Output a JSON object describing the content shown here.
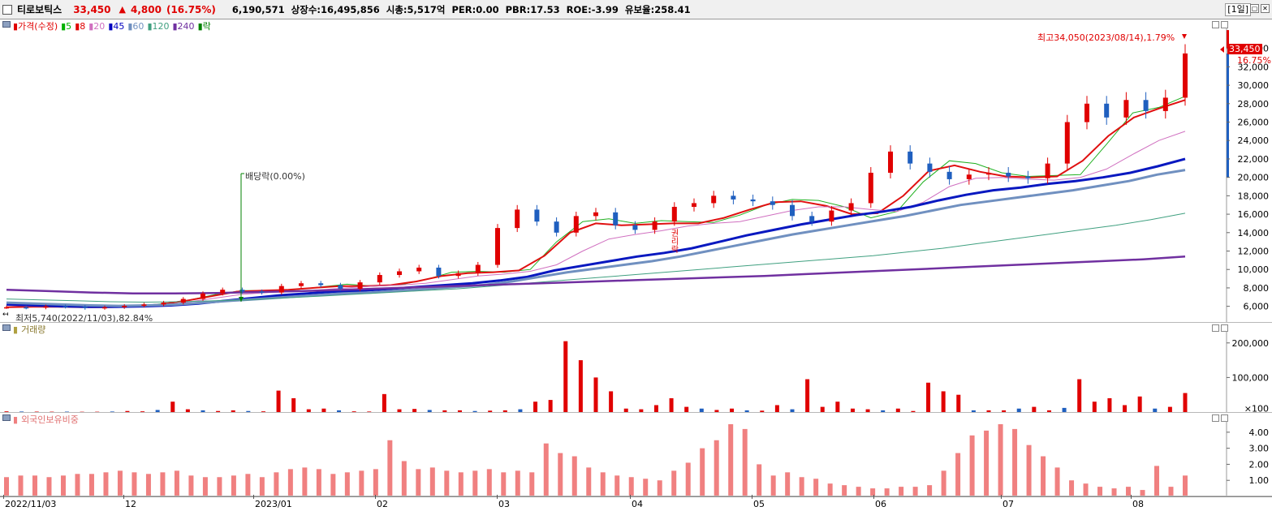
{
  "header": {
    "stock_name": "티로보틱스",
    "price": "33,450",
    "arrow": "▲",
    "change": "4,800",
    "change_rate": "(16.75%)",
    "volume": "6,190,571",
    "listed_shares": "상장수:16,495,856",
    "market_cap": "시총:5,517억",
    "per": "PER:0.00",
    "pbr": "PBR:17.53",
    "roe": "ROE:-3.99",
    "float_rate": "유보율:258.41",
    "period": "[1일]",
    "win_restore": "▢",
    "win_close": "✕"
  },
  "price_panel": {
    "legend": [
      {
        "text": "가격(수정)",
        "color": "#e00000"
      },
      {
        "text": "5",
        "color": "#00b000"
      },
      {
        "text": "8",
        "color": "#e00000"
      },
      {
        "text": "20",
        "color": "#d070c0"
      },
      {
        "text": "45",
        "color": "#0000c0"
      },
      {
        "text": "60",
        "color": "#7090c0"
      },
      {
        "text": "120",
        "color": "#40a080"
      },
      {
        "text": "240",
        "color": "#7030a0"
      },
      {
        "text": "락",
        "color": "#008000"
      }
    ],
    "high_label": "최고34,050(2023/08/14),1.79%",
    "low_label": "최저5,740(2022/11/03),82.84%",
    "dividend_label": "배당락(0.00%)",
    "rights_label": "권리락",
    "current_price_tag": "33,450",
    "current_rate_tag": "16.75%",
    "y_ticks": [
      "34,000",
      "32,000",
      "30,000",
      "28,000",
      "26,000",
      "24,000",
      "22,000",
      "20,000",
      "18,000",
      "16,000",
      "14,000",
      "12,000",
      "10,000",
      "8,000",
      "6,000"
    ]
  },
  "volume_panel": {
    "legend": "거래량",
    "y_ticks": [
      "200,000",
      "100,000",
      "×100"
    ]
  },
  "foreign_panel": {
    "legend": "외국인보유비중",
    "y_ticks": [
      "4.00",
      "3.00",
      "2.00",
      "1.00"
    ]
  },
  "x_axis": [
    "2022/11/03",
    "12",
    "2023/01",
    "02",
    "03",
    "04",
    "05",
    "06",
    "07",
    "08"
  ],
  "colors": {
    "up": "#e00000",
    "down": "#1f5fbf",
    "foreign": "#f08080"
  },
  "chart_data": [
    {
      "type": "candlestick",
      "title": "가격(수정)",
      "x_categories": [
        "2022/11/03",
        "12",
        "2023/01",
        "02",
        "03",
        "04",
        "05",
        "06",
        "07",
        "08"
      ],
      "y_range": [
        5000,
        34500
      ],
      "close_approx": [
        5900,
        5850,
        6000,
        5950,
        5800,
        5900,
        6050,
        6200,
        6400,
        6800,
        7400,
        7800,
        7600,
        7500,
        8200,
        8500,
        8300,
        7900,
        8600,
        9400,
        9800,
        10200,
        9300,
        9600,
        10500,
        14500,
        16500,
        15200,
        14000,
        15800,
        16200,
        14800,
        14300,
        15200,
        16800,
        17200,
        18000,
        17600,
        17400,
        17000,
        15800,
        15200,
        16400,
        17200,
        20500,
        22800,
        21500,
        20600,
        19800,
        20300,
        20500,
        20100,
        19900,
        21500,
        26000,
        28000,
        26500,
        28400,
        27200,
        28650,
        33450
      ],
      "moving_averages": [
        {
          "name": "5",
          "values": [
            5900,
            5950,
            5950,
            5900,
            5950,
            6050,
            6300,
            6700,
            7300,
            7700,
            7700,
            7800,
            8100,
            8400,
            8200,
            8300,
            8900,
            9700,
            9800,
            9700,
            10000,
            13000,
            15200,
            15500,
            15000,
            15300,
            15200,
            15100,
            15900,
            17000,
            17600,
            17500,
            16800,
            15600,
            16300,
            19500,
            21800,
            21500,
            20500,
            20100,
            20200,
            20300,
            23600,
            27000,
            27600,
            28800
          ]
        },
        {
          "name": "8",
          "values": [
            5900,
            5950,
            5950,
            5900,
            5900,
            6000,
            6200,
            6600,
            7100,
            7600,
            7700,
            7800,
            8000,
            8200,
            8200,
            8300,
            8700,
            9300,
            9600,
            9700,
            9900,
            11500,
            14000,
            15000,
            14800,
            14900,
            15000,
            15000,
            15600,
            16500,
            17300,
            17400,
            16900,
            16000,
            16100,
            18000,
            20700,
            21300,
            20600,
            20100,
            20000,
            20100,
            21800,
            24500,
            26500,
            27500,
            28400
          ]
        },
        {
          "name": "20",
          "values": [
            6100,
            6000,
            5950,
            5900,
            5900,
            6000,
            6100,
            6500,
            6900,
            7300,
            7500,
            7600,
            7800,
            8000,
            8200,
            8300,
            8500,
            8900,
            9300,
            9500,
            9800,
            10500,
            12000,
            13300,
            13800,
            14200,
            14700,
            15000,
            15200,
            15800,
            16400,
            16800,
            16800,
            16500,
            16300,
            17300,
            19000,
            19900,
            20000,
            19800,
            19700,
            20000,
            20900,
            22500,
            24000,
            25000
          ]
        },
        {
          "name": "45",
          "values": [
            6200,
            6100,
            6000,
            5950,
            5950,
            6000,
            6100,
            6300,
            6600,
            6900,
            7200,
            7400,
            7600,
            7700,
            7900,
            8100,
            8300,
            8500,
            8800,
            9200,
            9900,
            10400,
            10900,
            11400,
            11800,
            12300,
            13000,
            13700,
            14300,
            14900,
            15400,
            15900,
            16300,
            16800,
            17500,
            18100,
            18600,
            18900,
            19300,
            19600,
            20000,
            20500,
            21200,
            22000
          ]
        },
        {
          "name": "60",
          "values": [
            6400,
            6300,
            6200,
            6100,
            6050,
            6100,
            6200,
            6400,
            6600,
            6800,
            7000,
            7200,
            7400,
            7500,
            7700,
            7900,
            8100,
            8300,
            8700,
            9200,
            9700,
            10100,
            10500,
            10900,
            11400,
            12000,
            12600,
            13200,
            13800,
            14300,
            14800,
            15300,
            15800,
            16400,
            17000,
            17400,
            17800,
            18200,
            18600,
            19100,
            19600,
            20300,
            20800
          ]
        },
        {
          "name": "120",
          "values": [
            6800,
            6700,
            6600,
            6500,
            6450,
            6500,
            6600,
            6700,
            6900,
            7100,
            7300,
            7500,
            7700,
            7900,
            8200,
            8500,
            8800,
            9100,
            9400,
            9700,
            10000,
            10300,
            10600,
            10900,
            11200,
            11500,
            11900,
            12300,
            12800,
            13300,
            13800,
            14300,
            14800,
            15400,
            16100
          ]
        },
        {
          "name": "240",
          "values": [
            7800,
            7650,
            7500,
            7400,
            7400,
            7450,
            7550,
            7650,
            7800,
            7950,
            8100,
            8250,
            8400,
            8550,
            8700,
            8850,
            9000,
            9150,
            9300,
            9500,
            9700,
            9900,
            10100,
            10300,
            10500,
            10700,
            10900,
            11100,
            11400
          ]
        }
      ]
    },
    {
      "type": "bar",
      "title": "거래량",
      "y_unit": "×100",
      "y_range": [
        0,
        230000
      ],
      "values": [
        2000,
        1500,
        1200,
        1000,
        1200,
        800,
        900,
        1500,
        3000,
        2000,
        6000,
        30000,
        8000,
        5000,
        3000,
        5000,
        3000,
        2000,
        62000,
        40000,
        8000,
        10000,
        5000,
        2000,
        1500,
        52000,
        8000,
        9000,
        6000,
        5000,
        5000,
        3000,
        4000,
        5000,
        8000,
        30000,
        35000,
        205000,
        150000,
        100000,
        60000,
        10000,
        8000,
        20000,
        40000,
        15000,
        10000,
        6000,
        10000,
        5000,
        4000,
        20000,
        8000,
        95000,
        15000,
        30000,
        10000,
        8000,
        5000,
        10000,
        3000,
        85000,
        60000,
        50000,
        5000,
        5000,
        5000,
        10000,
        15000,
        5000,
        12000,
        95000,
        30000,
        40000,
        20000,
        45000,
        10000,
        15000,
        55000
      ]
    },
    {
      "type": "bar",
      "title": "외국인보유비중",
      "y_range": [
        0,
        4.7
      ],
      "values": [
        1.2,
        1.3,
        1.3,
        1.2,
        1.3,
        1.4,
        1.4,
        1.5,
        1.6,
        1.5,
        1.4,
        1.5,
        1.6,
        1.3,
        1.2,
        1.2,
        1.3,
        1.4,
        1.2,
        1.5,
        1.7,
        1.8,
        1.7,
        1.4,
        1.5,
        1.6,
        1.7,
        3.5,
        2.2,
        1.7,
        1.8,
        1.6,
        1.5,
        1.6,
        1.7,
        1.5,
        1.6,
        1.5,
        3.3,
        2.7,
        2.5,
        1.8,
        1.5,
        1.3,
        1.2,
        1.1,
        1.0,
        1.6,
        2.1,
        3.0,
        3.5,
        4.5,
        4.2,
        2.0,
        1.3,
        1.5,
        1.2,
        1.1,
        0.8,
        0.7,
        0.6,
        0.5,
        0.5,
        0.6,
        0.6,
        0.7,
        1.6,
        2.7,
        3.8,
        4.1,
        4.5,
        4.2,
        3.2,
        2.5,
        1.8,
        1.0,
        0.8,
        0.6,
        0.5,
        0.6,
        0.4,
        1.9,
        0.6,
        1.3
      ]
    }
  ]
}
